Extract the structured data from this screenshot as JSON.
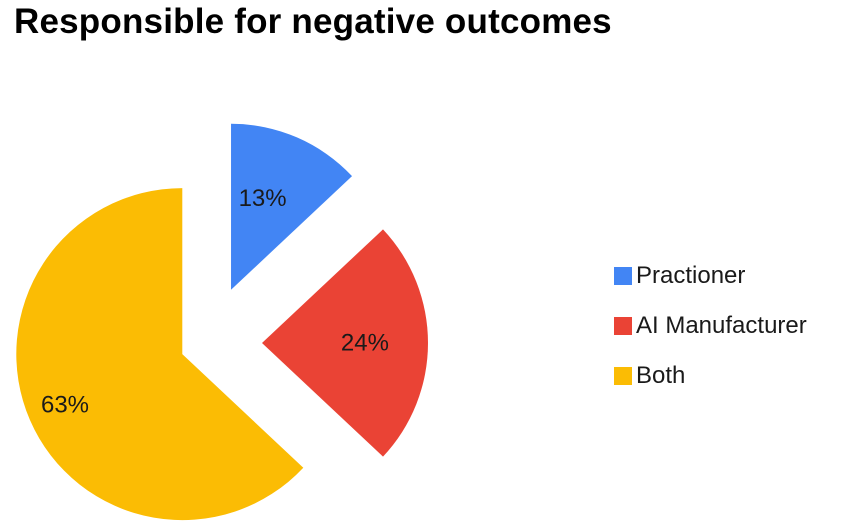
{
  "chart_data": {
    "type": "pie",
    "title": "Responsible for negative outcomes",
    "categories": [
      "Practioner",
      "AI Manufacturer",
      "Both"
    ],
    "values": [
      13,
      24,
      63
    ],
    "labels": [
      "13%",
      "24%",
      "63%"
    ],
    "colors": [
      "#4285F4",
      "#EA4335",
      "#FBBC04"
    ],
    "exploded": true,
    "legend_position": "right"
  }
}
